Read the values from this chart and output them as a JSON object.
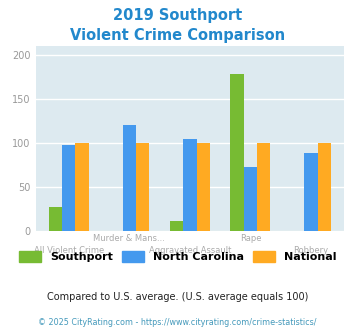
{
  "title_line1": "2019 Southport",
  "title_line2": "Violent Crime Comparison",
  "title_color": "#2288cc",
  "categories": [
    "All Violent Crime",
    "Murder & Mans...",
    "Aggravated Assault",
    "Rape",
    "Robbery"
  ],
  "southport": [
    27,
    0,
    11,
    178,
    0
  ],
  "north_carolina": [
    98,
    120,
    105,
    73,
    89
  ],
  "national": [
    100,
    100,
    100,
    100,
    100
  ],
  "southport_color": "#77bb33",
  "nc_color": "#4499ee",
  "national_color": "#ffaa22",
  "ylim": [
    0,
    210
  ],
  "yticks": [
    0,
    50,
    100,
    150,
    200
  ],
  "bg_color": "#ddeaf0",
  "footer_note": "Compared to U.S. average. (U.S. average equals 100)",
  "footer_note_color": "#222222",
  "footer_copy": "© 2025 CityRating.com - https://www.cityrating.com/crime-statistics/",
  "footer_copy_color": "#4499bb",
  "bar_width": 0.22,
  "tick_label_color": "#aaaaaa"
}
